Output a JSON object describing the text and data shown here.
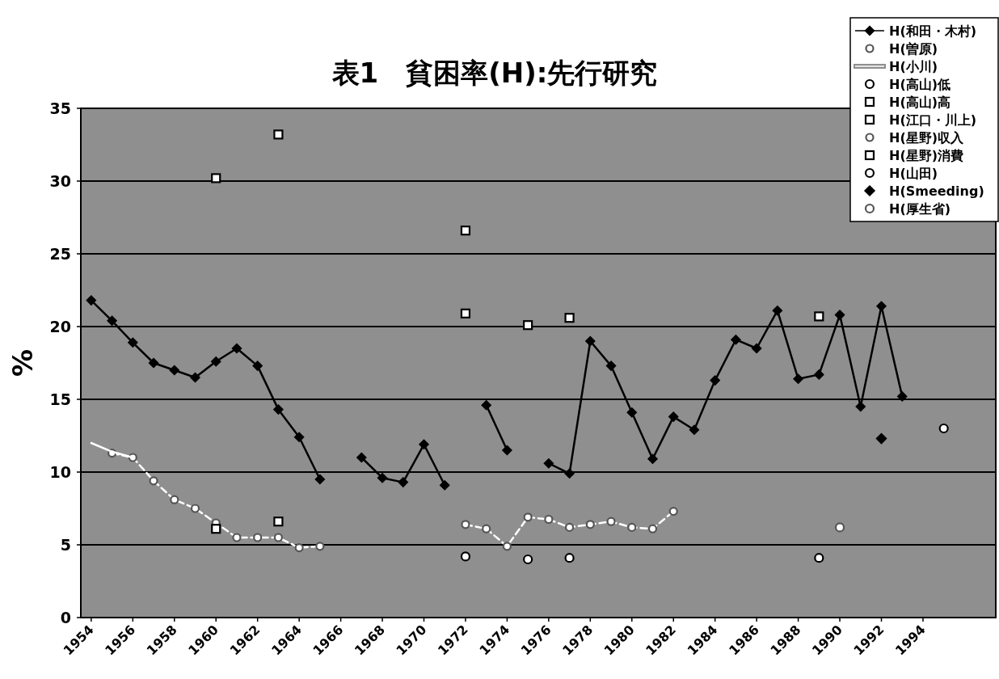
{
  "chart_data": {
    "type": "line",
    "title": "表1　貧困率(H):先行研究",
    "ylabel": "%",
    "xlim": [
      1953.5,
      1997.5
    ],
    "xticks": [
      1954,
      1956,
      1958,
      1960,
      1962,
      1964,
      1966,
      1968,
      1970,
      1972,
      1974,
      1976,
      1978,
      1980,
      1982,
      1984,
      1986,
      1988,
      1990,
      1992,
      1994
    ],
    "ylim": [
      0,
      35
    ],
    "yticks": [
      0,
      5,
      10,
      15,
      20,
      25,
      30,
      35
    ],
    "grid": "y",
    "legend": "top right",
    "series": [
      {
        "name": "H(和田・木村)",
        "color": "#000000",
        "marker": "diamond",
        "line_style": "solid",
        "x": [
          1954,
          1955,
          1956,
          1957,
          1958,
          1959,
          1960,
          1961,
          1962,
          1963,
          1964,
          1965,
          1966,
          1967,
          1968,
          1969,
          1970,
          1971,
          1972,
          1973,
          1974,
          1975,
          1976,
          1977,
          1978,
          1979,
          1980,
          1981,
          1982,
          1983,
          1984,
          1985,
          1986,
          1987,
          1988,
          1989,
          1990,
          1991,
          1992,
          1993
        ],
        "values": [
          21.8,
          20.4,
          18.9,
          17.5,
          17.0,
          16.5,
          17.6,
          18.5,
          17.3,
          14.3,
          12.4,
          9.5,
          null,
          11.0,
          9.6,
          9.3,
          11.9,
          9.1,
          null,
          14.6,
          11.5,
          null,
          10.6,
          9.9,
          19.0,
          17.3,
          14.1,
          10.9,
          13.8,
          12.9,
          16.3,
          19.1,
          18.5,
          21.1,
          16.4,
          16.7,
          20.8,
          14.5,
          21.4,
          15.2
        ]
      },
      {
        "name": "H(曽原)",
        "color": "#ffffff",
        "marker": "circle",
        "line_style": "dashed",
        "x": [
          1955,
          1956,
          1957,
          1958,
          1959,
          1960,
          1961,
          1962,
          1963,
          1964,
          1965
        ],
        "values": [
          11.3,
          11.0,
          9.4,
          8.1,
          7.5,
          6.5,
          5.5,
          5.5,
          5.5,
          4.8,
          4.9
        ]
      },
      {
        "name": "H(小川)",
        "color": "#ffffff",
        "marker": "none",
        "line_style": "solid",
        "x": [
          1954,
          1955,
          1956
        ],
        "values": [
          12.0,
          11.4,
          11.0
        ]
      },
      {
        "name": "H(高山)低",
        "type": "scatter",
        "color": "#000000",
        "marker": "circle",
        "x": [
          1972,
          1975,
          1977,
          1989
        ],
        "values": [
          4.2,
          4.0,
          4.1,
          4.1
        ]
      },
      {
        "name": "H(高山)高",
        "type": "scatter",
        "color": "#000000",
        "marker": "square",
        "x": [
          1972,
          1975,
          1977,
          1989
        ],
        "values": [
          20.9,
          20.1,
          20.6,
          20.7
        ]
      },
      {
        "name": "H(江口・川上)",
        "type": "scatter",
        "color": "#000000",
        "marker": "square",
        "x": [
          1960,
          1963,
          1972
        ],
        "values": [
          30.2,
          33.2,
          26.6
        ]
      },
      {
        "name": "H(星野)収入",
        "color": "#ffffff",
        "marker": "circle",
        "line_style": "dashed",
        "x": [
          1972,
          1973,
          1974,
          1975,
          1976,
          1977,
          1978,
          1979,
          1980,
          1981,
          1982
        ],
        "values": [
          6.4,
          6.1,
          4.9,
          6.9,
          6.75,
          6.2,
          6.4,
          6.6,
          6.2,
          6.1,
          7.3
        ]
      },
      {
        "name": "H(星野)消費",
        "type": "scatter",
        "color": "#000000",
        "marker": "square",
        "x": [
          1960,
          1963
        ],
        "values": [
          6.1,
          6.6
        ]
      },
      {
        "name": "H(山田)",
        "type": "scatter",
        "color": "#000000",
        "marker": "circle",
        "x": [
          1995
        ],
        "values": [
          13.0
        ]
      },
      {
        "name": "H(Smeeding)",
        "type": "scatter",
        "color": "#000000",
        "marker": "diamond",
        "x": [
          1992
        ],
        "values": [
          12.3
        ]
      },
      {
        "name": "H(厚生省)",
        "type": "scatter",
        "color": "#ffffff",
        "marker": "circle",
        "x": [
          1990
        ],
        "values": [
          6.2
        ]
      }
    ]
  }
}
